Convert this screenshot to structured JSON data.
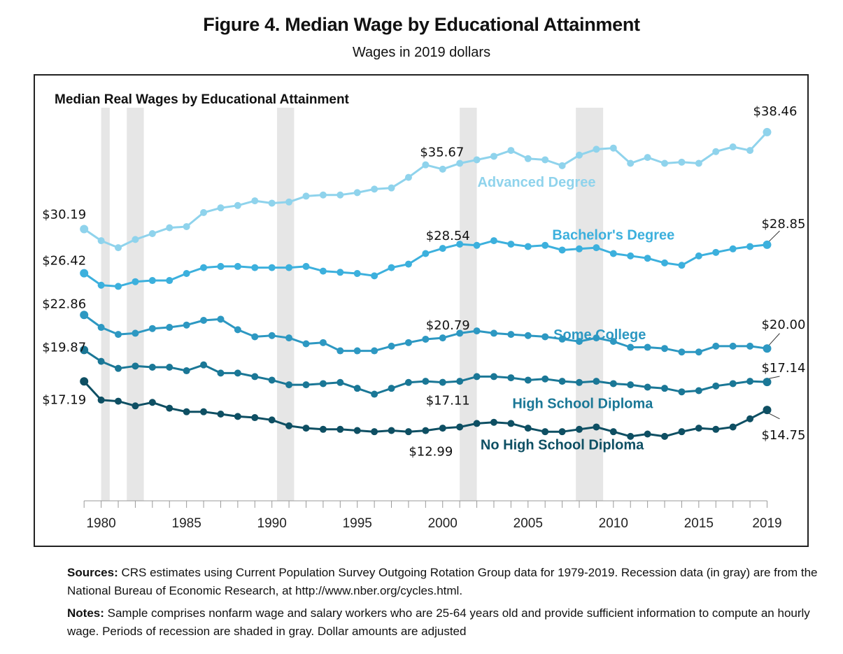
{
  "figure": {
    "title": "Figure 4. Median Wage by Educational Attainment",
    "subtitle": "Wages in 2019 dollars"
  },
  "chart_data": {
    "type": "line",
    "title": "Median Real Wages by Educational Attainment",
    "xlabel": "",
    "ylabel": "",
    "x": [
      1979,
      1980,
      1981,
      1982,
      1983,
      1984,
      1985,
      1986,
      1987,
      1988,
      1989,
      1990,
      1991,
      1992,
      1993,
      1994,
      1995,
      1996,
      1997,
      1998,
      1999,
      2000,
      2001,
      2002,
      2003,
      2004,
      2005,
      2006,
      2007,
      2008,
      2009,
      2010,
      2011,
      2012,
      2013,
      2014,
      2015,
      2016,
      2017,
      2018,
      2019
    ],
    "xticks": [
      "1980",
      "1985",
      "1990",
      "1995",
      "2000",
      "2005",
      "2010",
      "2015",
      "2019"
    ],
    "xlim": [
      1978.5,
      2019.8
    ],
    "ylim": [
      7,
      41.5
    ],
    "grid": false,
    "recessions": [
      [
        1980.0,
        1980.5
      ],
      [
        1981.5,
        1982.5
      ],
      [
        1990.3,
        1991.3
      ],
      [
        2001.0,
        2002.0
      ],
      [
        2007.8,
        2009.4
      ]
    ],
    "recession_color": "#e6e6e6",
    "series": [
      {
        "name": "Advanced Degree",
        "color": "#8fd3ec",
        "values": [
          30.19,
          29.2,
          28.6,
          29.3,
          29.8,
          30.3,
          30.4,
          31.6,
          32.0,
          32.2,
          32.6,
          32.4,
          32.5,
          33.0,
          33.1,
          33.1,
          33.3,
          33.6,
          33.7,
          34.6,
          35.67,
          35.3,
          35.8,
          36.1,
          36.4,
          36.9,
          36.2,
          36.1,
          35.6,
          36.5,
          37.0,
          37.1,
          35.8,
          36.3,
          35.8,
          35.9,
          35.8,
          36.8,
          37.2,
          36.9,
          38.46
        ]
      },
      {
        "name": "Bachelor's Degree",
        "color": "#3cb0dd",
        "values": [
          26.42,
          25.4,
          25.3,
          25.7,
          25.8,
          25.8,
          26.4,
          26.9,
          27.0,
          27.0,
          26.9,
          26.9,
          26.9,
          27.0,
          26.6,
          26.5,
          26.4,
          26.2,
          26.9,
          27.2,
          28.1,
          28.54,
          28.9,
          28.8,
          29.2,
          28.9,
          28.7,
          28.8,
          28.4,
          28.5,
          28.6,
          28.1,
          27.9,
          27.7,
          27.3,
          27.1,
          27.9,
          28.2,
          28.5,
          28.7,
          28.85
        ]
      },
      {
        "name": "Some College",
        "color": "#2d98c2",
        "values": [
          22.86,
          21.8,
          21.2,
          21.3,
          21.7,
          21.8,
          22.0,
          22.4,
          22.5,
          21.6,
          21.0,
          21.1,
          20.9,
          20.4,
          20.5,
          19.8,
          19.8,
          19.8,
          20.2,
          20.5,
          20.79,
          20.9,
          21.3,
          21.5,
          21.3,
          21.2,
          21.1,
          21.0,
          20.8,
          20.6,
          20.9,
          20.6,
          20.1,
          20.1,
          20.0,
          19.7,
          19.7,
          20.2,
          20.2,
          20.2,
          20.0
        ]
      },
      {
        "name": "High School Diploma",
        "color": "#1a7796",
        "values": [
          19.87,
          18.9,
          18.3,
          18.5,
          18.4,
          18.4,
          18.1,
          18.6,
          17.9,
          17.9,
          17.6,
          17.3,
          16.9,
          16.9,
          17.0,
          17.1,
          16.6,
          16.1,
          16.6,
          17.1,
          17.2,
          17.11,
          17.2,
          17.6,
          17.6,
          17.5,
          17.3,
          17.4,
          17.2,
          17.1,
          17.2,
          17.0,
          16.9,
          16.7,
          16.6,
          16.3,
          16.4,
          16.8,
          17.0,
          17.2,
          17.14
        ]
      },
      {
        "name": "No High School Diploma",
        "color": "#0e4f63",
        "values": [
          17.19,
          15.6,
          15.5,
          15.1,
          15.4,
          14.9,
          14.6,
          14.6,
          14.4,
          14.2,
          14.1,
          13.9,
          13.4,
          13.2,
          13.1,
          13.1,
          13.0,
          12.9,
          13.0,
          12.9,
          12.99,
          13.2,
          13.3,
          13.6,
          13.7,
          13.6,
          13.2,
          12.9,
          12.9,
          13.1,
          13.3,
          12.9,
          12.5,
          12.7,
          12.5,
          12.9,
          13.2,
          13.1,
          13.3,
          14.0,
          14.75
        ]
      }
    ],
    "series_labels": [
      "Advanced Degree",
      "Bachelor's Degree",
      "Some College",
      "High School Diploma",
      "No High School Diploma"
    ],
    "annotations": [
      {
        "text": "$30.19",
        "x": 1979,
        "y": 30.19
      },
      {
        "text": "$26.42",
        "x": 1979,
        "y": 26.42
      },
      {
        "text": "$22.86",
        "x": 1979,
        "y": 22.86
      },
      {
        "text": "$19.87",
        "x": 1979,
        "y": 19.87
      },
      {
        "text": "$17.19",
        "x": 1979,
        "y": 17.19
      },
      {
        "text": "$35.67",
        "x": 1999,
        "y": 35.67
      },
      {
        "text": "$28.54",
        "x": 2000,
        "y": 28.54
      },
      {
        "text": "$20.79",
        "x": 2000,
        "y": 20.79
      },
      {
        "text": "$17.11",
        "x": 2000,
        "y": 17.11
      },
      {
        "text": "$12.99",
        "x": 1999,
        "y": 12.99
      },
      {
        "text": "$38.46",
        "x": 2019,
        "y": 38.46
      },
      {
        "text": "$28.85",
        "x": 2019,
        "y": 28.85
      },
      {
        "text": "$20.00",
        "x": 2019,
        "y": 20.0
      },
      {
        "text": "$17.14",
        "x": 2019,
        "y": 17.14
      },
      {
        "text": "$14.75",
        "x": 2019,
        "y": 14.75
      }
    ]
  },
  "notes": {
    "sources_label": "Sources:",
    "sources_text": "CRS estimates using Current Population Survey Outgoing Rotation Group data for 1979-2019. Recession data (in gray) are from the National Bureau of Economic Research, at http://www.nber.org/cycles.html.",
    "notes_label": "Notes:",
    "notes_text": "Sample comprises nonfarm wage and salary workers who are 25-64 years old and provide sufficient information to compute an hourly wage. Periods of recession are shaded in gray. Dollar amounts are adjusted"
  }
}
